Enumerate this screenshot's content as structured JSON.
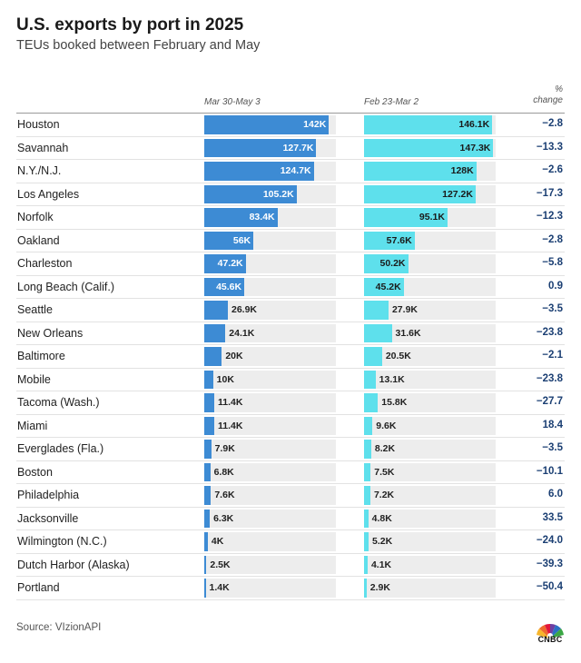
{
  "title": "U.S. exports by port in 2025",
  "subtitle": "TEUs booked between February and May",
  "columns": {
    "period_a": "Mar 30-May 3",
    "period_b": "Feb 23-Mar 2",
    "change_line1": "%",
    "change_line2": "change"
  },
  "source": "Source: VIzionAPI",
  "logo_text": "CNBC",
  "colors": {
    "series_a": "#3d8bd4",
    "series_b": "#5ee0ec",
    "track": "#ededed",
    "change_text": "#1b3f73"
  },
  "chart_data": {
    "type": "bar",
    "orientation": "horizontal",
    "title": "U.S. exports by port in 2025",
    "subtitle": "TEUs booked between February and May",
    "categories": [
      "Houston",
      "Savannah",
      "N.Y./N.J.",
      "Los Angeles",
      "Norfolk",
      "Oakland",
      "Charleston",
      "Long Beach (Calif.)",
      "Seattle",
      "New Orleans",
      "Baltimore",
      "Mobile",
      "Tacoma (Wash.)",
      "Miami",
      "Everglades (Fla.)",
      "Boston",
      "Philadelphia",
      "Jacksonville",
      "Wilmington (N.C.)",
      "Dutch Harbor (Alaska)",
      "Portland"
    ],
    "xlim": [
      0,
      150000
    ],
    "series": [
      {
        "name": "Mar 30-May 3",
        "values": [
          142000,
          127700,
          124700,
          105200,
          83400,
          56000,
          47200,
          45600,
          26900,
          24100,
          20000,
          10000,
          11400,
          11400,
          7900,
          6800,
          7600,
          6300,
          4000,
          2500,
          1400
        ],
        "labels": [
          "142K",
          "127.7K",
          "124.7K",
          "105.2K",
          "83.4K",
          "56K",
          "47.2K",
          "45.6K",
          "26.9K",
          "24.1K",
          "20K",
          "10K",
          "11.4K",
          "11.4K",
          "7.9K",
          "6.8K",
          "7.6K",
          "6.3K",
          "4K",
          "2.5K",
          "1.4K"
        ]
      },
      {
        "name": "Feb 23-Mar 2",
        "values": [
          146100,
          147300,
          128000,
          127200,
          95100,
          57600,
          50200,
          45200,
          27900,
          31600,
          20500,
          13100,
          15800,
          9600,
          8200,
          7500,
          7200,
          4800,
          5200,
          4100,
          2900
        ],
        "labels": [
          "146.1K",
          "147.3K",
          "128K",
          "127.2K",
          "95.1K",
          "57.6K",
          "50.2K",
          "45.2K",
          "27.9K",
          "31.6K",
          "20.5K",
          "13.1K",
          "15.8K",
          "9.6K",
          "8.2K",
          "7.5K",
          "7.2K",
          "4.8K",
          "5.2K",
          "4.1K",
          "2.9K"
        ]
      }
    ],
    "change_pct": [
      "−2.8",
      "−13.3",
      "−2.6",
      "−17.3",
      "−12.3",
      "−2.8",
      "−5.8",
      "0.9",
      "−3.5",
      "−23.8",
      "−2.1",
      "−23.8",
      "−27.7",
      "18.4",
      "−3.5",
      "−10.1",
      "6.0",
      "33.5",
      "−24.0",
      "−39.3",
      "−50.4"
    ]
  }
}
